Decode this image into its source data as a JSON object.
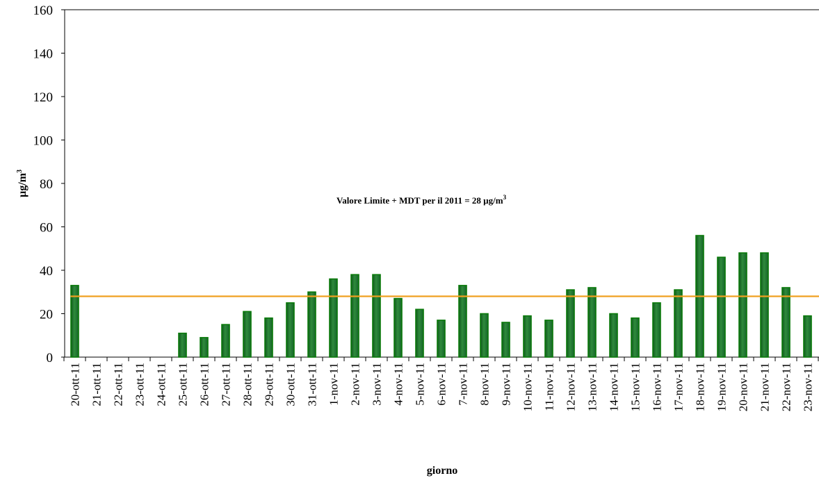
{
  "chart_data": {
    "type": "bar",
    "xlabel": "giorno",
    "ylabel": "µg/m",
    "ylabel_sup": "3",
    "ylim": [
      0,
      160
    ],
    "yticks": [
      "0",
      "20",
      "40",
      "60",
      "80",
      "100",
      "120",
      "140",
      "160"
    ],
    "grid": false,
    "categories": [
      "20-ott-11",
      "21-ott-11",
      "22-ott-11",
      "23-ott-11",
      "24-ott-11",
      "25-ott-11",
      "26-ott-11",
      "27-ott-11",
      "28-ott-11",
      "29-ott-11",
      "30-ott-11",
      "31-ott-11",
      "1-nov-11",
      "2-nov-11",
      "3-nov-11",
      "4-nov-11",
      "5-nov-11",
      "6-nov-11",
      "7-nov-11",
      "8-nov-11",
      "9-nov-11",
      "10-nov-11",
      "11-nov-11",
      "12-nov-11",
      "13-nov-11",
      "14-nov-11",
      "15-nov-11",
      "16-nov-11",
      "17-nov-11",
      "18-nov-11",
      "19-nov-11",
      "20-nov-11",
      "21-nov-11",
      "22-nov-11",
      "23-nov-11"
    ],
    "values": [
      33,
      null,
      null,
      null,
      null,
      11,
      9,
      15,
      21,
      18,
      25,
      30,
      36,
      38,
      38,
      27,
      22,
      17,
      33,
      20,
      16,
      19,
      17,
      31,
      32,
      20,
      18,
      25,
      31,
      56,
      46,
      48,
      48,
      32,
      19
    ],
    "limit_line": {
      "value": 28,
      "label": "Valore Limite + MDT  per il 2011 = 28 µg/m",
      "label_sup": "3"
    },
    "colors": {
      "bar": "#1f7a2e",
      "bar_edge": "#0a7a0a",
      "limit": "#f0a020"
    }
  }
}
